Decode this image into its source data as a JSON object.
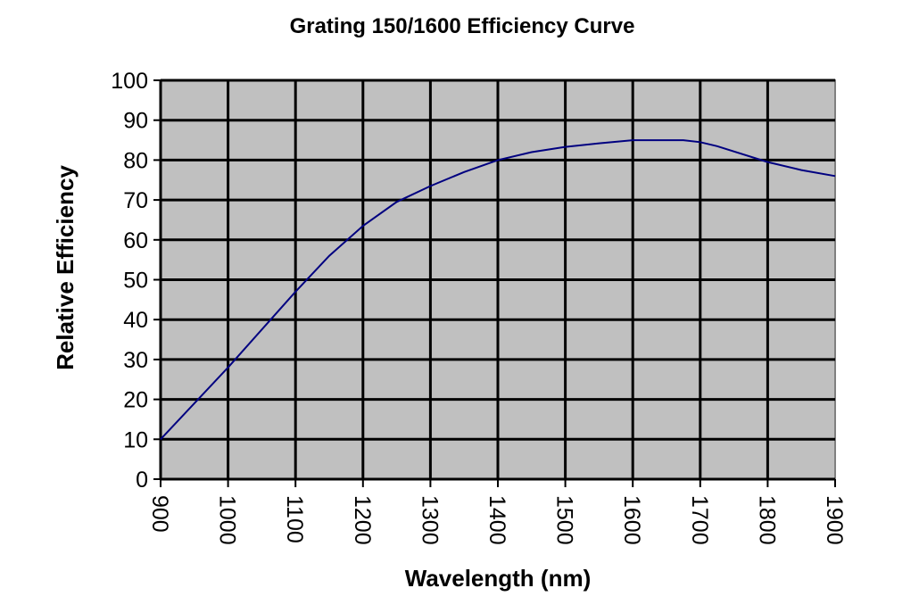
{
  "chart_data": {
    "type": "line",
    "title": "Grating 150/1600 Efficiency Curve",
    "xlabel": "Wavelength (nm)",
    "ylabel": "Relative Efficiency",
    "xlim": [
      900,
      1900
    ],
    "ylim": [
      0,
      100
    ],
    "xticks": [
      "900",
      "1000",
      "1100",
      "1200",
      "1300",
      "1400",
      "1500",
      "1600",
      "1700",
      "1800",
      "1900"
    ],
    "yticks": [
      "0",
      "10",
      "20",
      "30",
      "40",
      "50",
      "60",
      "70",
      "80",
      "90",
      "100"
    ],
    "grid": true,
    "plot_background": "#c0c0c0",
    "series": [
      {
        "name": "Efficiency",
        "color": "#000080",
        "x": [
          900,
          1000,
          1100,
          1150,
          1200,
          1250,
          1300,
          1350,
          1400,
          1450,
          1500,
          1550,
          1600,
          1675,
          1700,
          1725,
          1800,
          1850,
          1900
        ],
        "y": [
          10,
          28,
          47,
          56,
          63.5,
          69.5,
          73.5,
          77,
          80,
          82,
          83.3,
          84.2,
          85,
          85,
          84.5,
          83.5,
          79.5,
          77.5,
          76
        ]
      }
    ]
  }
}
